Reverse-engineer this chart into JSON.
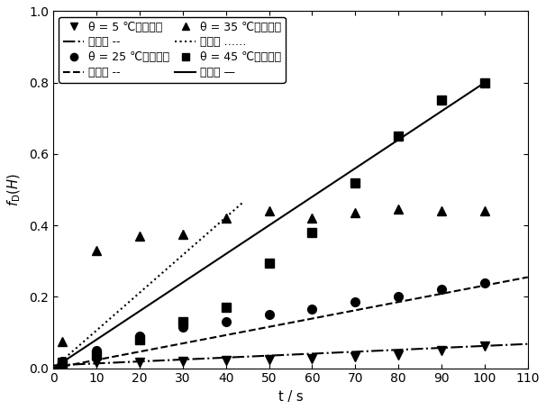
{
  "xlabel": "t / s",
  "ylabel": "$f_{\\mathrm{D}}(H)$",
  "xlim": [
    0,
    110
  ],
  "ylim": [
    0,
    1.0
  ],
  "xticks": [
    0,
    10,
    20,
    30,
    40,
    50,
    60,
    70,
    80,
    90,
    100,
    110
  ],
  "yticks": [
    0.0,
    0.2,
    0.4,
    0.6,
    0.8,
    1.0
  ],
  "series": [
    {
      "temp": "5",
      "marker": "v",
      "linestyle": "-.",
      "exp_t": [
        2,
        10,
        20,
        30,
        40,
        50,
        60,
        70,
        80,
        90,
        100
      ],
      "exp_y": [
        0.018,
        0.018,
        0.018,
        0.02,
        0.022,
        0.025,
        0.028,
        0.032,
        0.038,
        0.05,
        0.062
      ],
      "fit_t": [
        0,
        110
      ],
      "fit_y": [
        0.008,
        0.068
      ]
    },
    {
      "temp": "25",
      "marker": "o",
      "linestyle": "--",
      "exp_t": [
        2,
        10,
        20,
        30,
        40,
        50,
        60,
        70,
        80,
        90,
        100
      ],
      "exp_y": [
        0.02,
        0.05,
        0.09,
        0.115,
        0.13,
        0.15,
        0.165,
        0.185,
        0.2,
        0.22,
        0.24
      ],
      "fit_t": [
        0,
        110
      ],
      "fit_y": [
        0.0,
        0.255
      ]
    },
    {
      "temp": "35",
      "marker": "^",
      "linestyle": ":",
      "exp_t": [
        2,
        10,
        20,
        30,
        40,
        50,
        60,
        70,
        80,
        90,
        100
      ],
      "exp_y": [
        0.075,
        0.33,
        0.37,
        0.375,
        0.42,
        0.44,
        0.42,
        0.435,
        0.445,
        0.44,
        0.44
      ],
      "fit_t": [
        0,
        44
      ],
      "fit_y": [
        0.0,
        0.465
      ]
    },
    {
      "temp": "45",
      "marker": "s",
      "linestyle": "-",
      "exp_t": [
        2,
        10,
        20,
        30,
        40,
        50,
        60,
        70,
        80,
        90,
        100
      ],
      "exp_y": [
        0.015,
        0.038,
        0.08,
        0.13,
        0.17,
        0.295,
        0.38,
        0.52,
        0.65,
        0.75,
        0.8
      ],
      "fit_t": [
        0,
        100
      ],
      "fit_y": [
        0.0,
        0.8
      ]
    }
  ],
  "legend_rows": [
    {
      "exp_label": "θ = 5 ℃时实验值",
      "fit_label": "拟合值",
      "fit_suffix": "--·"
    },
    {
      "exp_label": "θ = 25 ℃时实验值",
      "fit_label": "拟合值",
      "fit_suffix": "--"
    },
    {
      "exp_label": "θ = 35 ℃时实验值",
      "fit_label": "拟合值",
      "fit_suffix": "⋯⋯⋯"
    },
    {
      "exp_label": "θ = 45 ℃时实验值",
      "fit_label": "拟合值",
      "fit_suffix": "—"
    }
  ],
  "background_color": "#ffffff",
  "markersize": 7,
  "linewidth": 1.5,
  "fontsize": 10.5
}
